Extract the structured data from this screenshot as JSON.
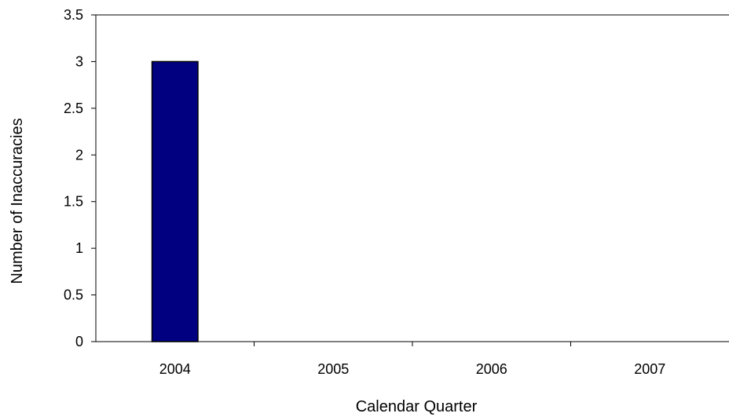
{
  "chart_data": {
    "type": "bar",
    "categories": [
      "2004",
      "2005",
      "2006",
      "2007"
    ],
    "values": [
      3,
      0,
      0,
      0
    ],
    "title": "",
    "xlabel": "Calendar Quarter",
    "ylabel": "Number of Inaccuracies",
    "ylim": [
      0,
      3.5
    ],
    "yticks": [
      "0",
      "0.5",
      "1",
      "1.5",
      "2",
      "2.5",
      "3",
      "3.5"
    ],
    "grid": false,
    "legend": "none",
    "bar_color": "#000080"
  }
}
